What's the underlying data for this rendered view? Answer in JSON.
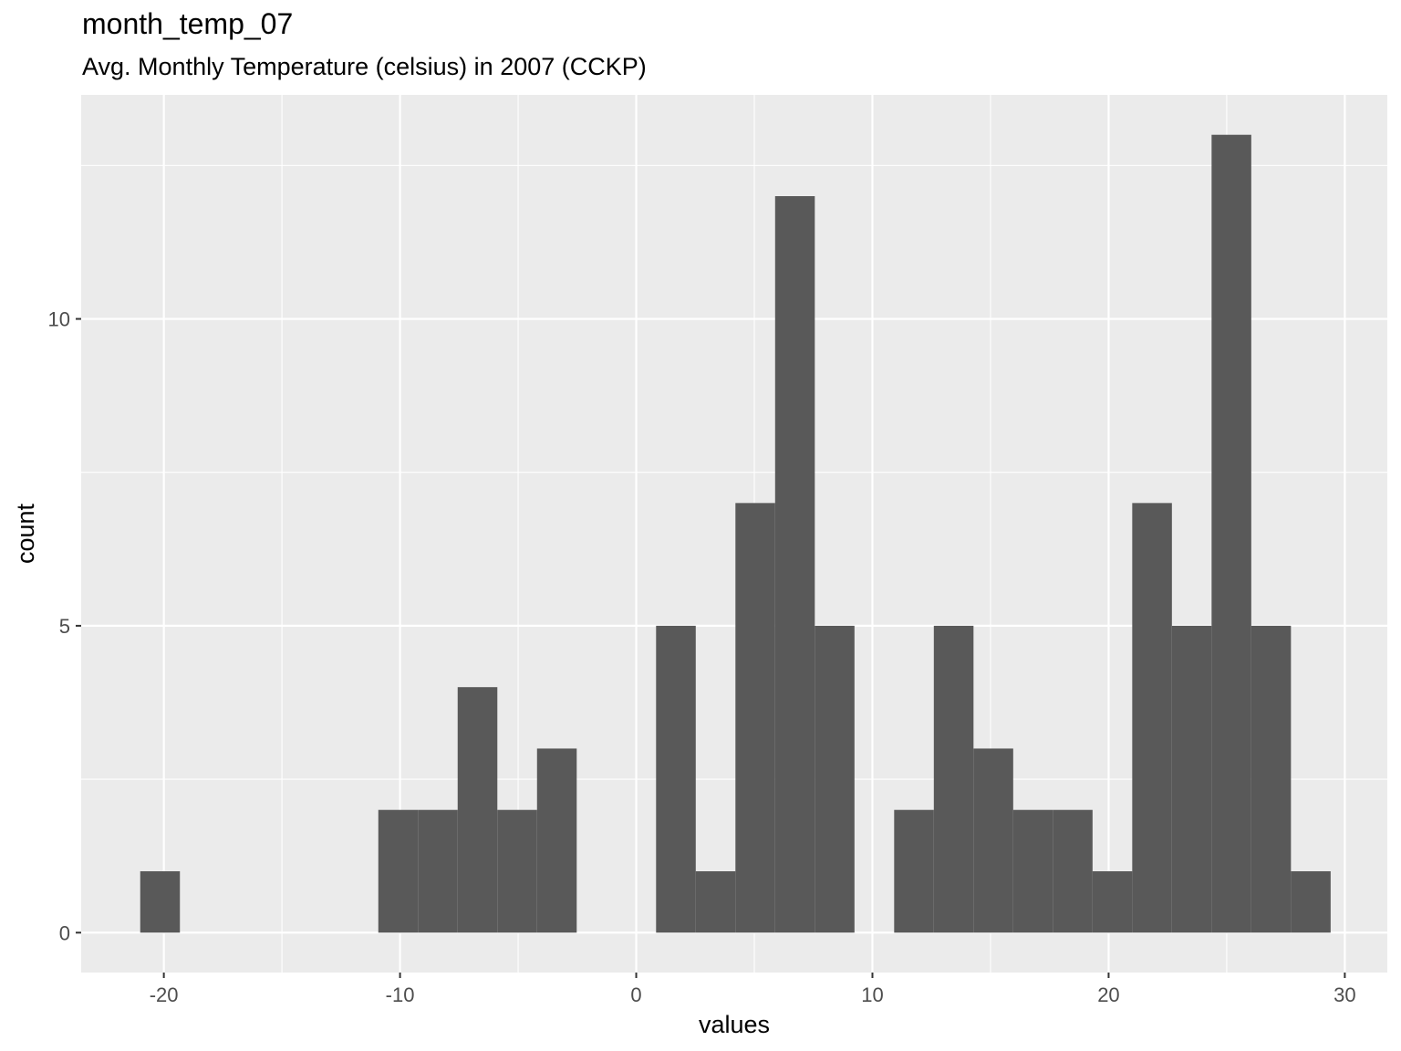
{
  "header": {
    "title": "month_temp_07",
    "subtitle": "Avg. Monthly Temperature (celsius) in 2007 (CCKP)"
  },
  "colors": {
    "panel_background": "#ebebeb",
    "grid_major": "#ffffff",
    "bar_fill": "#595959",
    "tick_text": "#4d4d4d"
  },
  "chart_data": {
    "type": "bar",
    "title": "month_temp_07",
    "subtitle": "Avg. Monthly Temperature (celsius) in 2007 (CCKP)",
    "xlabel": "values",
    "ylabel": "count",
    "xlim": [
      -23.5,
      31.8
    ],
    "ylim": [
      -0.65,
      13.65
    ],
    "x_ticks": [
      -20,
      -10,
      0,
      10,
      20,
      30
    ],
    "x_tick_labels": [
      "-20",
      "-10",
      "0",
      "10",
      "20",
      "30"
    ],
    "y_ticks": [
      0,
      5,
      10
    ],
    "y_tick_labels": [
      "0",
      "5",
      "10"
    ],
    "grid": true,
    "bin_width": 1.68,
    "bins": [
      {
        "x0": -21.0,
        "x1": -19.32,
        "count": 1
      },
      {
        "x0": -10.92,
        "x1": -9.24,
        "count": 2
      },
      {
        "x0": -9.24,
        "x1": -7.56,
        "count": 2
      },
      {
        "x0": -7.56,
        "x1": -5.88,
        "count": 4
      },
      {
        "x0": -5.88,
        "x1": -4.2,
        "count": 2
      },
      {
        "x0": -4.2,
        "x1": -2.52,
        "count": 3
      },
      {
        "x0": 0.84,
        "x1": 2.52,
        "count": 5
      },
      {
        "x0": 2.52,
        "x1": 4.2,
        "count": 1
      },
      {
        "x0": 4.2,
        "x1": 5.88,
        "count": 7
      },
      {
        "x0": 5.88,
        "x1": 7.56,
        "count": 12
      },
      {
        "x0": 7.56,
        "x1": 9.24,
        "count": 5
      },
      {
        "x0": 10.92,
        "x1": 12.6,
        "count": 2
      },
      {
        "x0": 12.6,
        "x1": 14.28,
        "count": 5
      },
      {
        "x0": 14.28,
        "x1": 15.96,
        "count": 3
      },
      {
        "x0": 15.96,
        "x1": 17.64,
        "count": 2
      },
      {
        "x0": 17.64,
        "x1": 19.32,
        "count": 2
      },
      {
        "x0": 19.32,
        "x1": 21.0,
        "count": 1
      },
      {
        "x0": 21.0,
        "x1": 22.68,
        "count": 7
      },
      {
        "x0": 22.68,
        "x1": 24.36,
        "count": 5
      },
      {
        "x0": 24.36,
        "x1": 26.04,
        "count": 13
      },
      {
        "x0": 26.04,
        "x1": 27.72,
        "count": 5
      },
      {
        "x0": 27.72,
        "x1": 29.4,
        "count": 1
      }
    ]
  }
}
